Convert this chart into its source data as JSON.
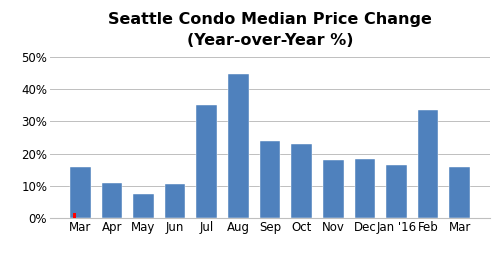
{
  "categories": [
    "Mar",
    "Apr",
    "May",
    "Jun",
    "Jul",
    "Aug",
    "Sep",
    "Oct",
    "Nov",
    "Dec",
    "Jan '16",
    "Feb",
    "Mar"
  ],
  "values": [
    16.0,
    11.0,
    7.5,
    10.5,
    35.0,
    44.5,
    24.0,
    23.0,
    18.0,
    18.5,
    16.5,
    33.5,
    16.0
  ],
  "bar_color": "#4F81BD",
  "red_marker_color": "#FF0000",
  "red_marker_index": 0,
  "title_line1": "Seattle Condo Median Price Change",
  "title_line2": "(Year-over-Year %)",
  "ylim": [
    0,
    50
  ],
  "yticks": [
    0,
    10,
    20,
    30,
    40,
    50
  ],
  "ytick_labels": [
    "0%",
    "10%",
    "20%",
    "30%",
    "40%",
    "50%"
  ],
  "background_color": "#FFFFFF",
  "plot_bg_color": "#FFFFFF",
  "grid_color": "#BFBFBF",
  "title_fontsize": 11.5,
  "tick_fontsize": 8.5,
  "bar_width": 0.65,
  "figsize": [
    5.0,
    2.57
  ],
  "dpi": 100
}
